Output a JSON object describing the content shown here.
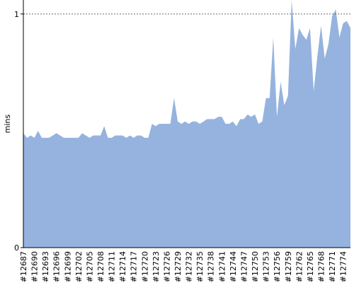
{
  "chart_data": {
    "type": "area",
    "y_label": "mins",
    "categories": [
      "#12687",
      null,
      null,
      "#12690",
      null,
      null,
      "#12693",
      null,
      null,
      "#12696",
      null,
      null,
      "#12699",
      null,
      null,
      "#12702",
      null,
      null,
      "#12705",
      null,
      null,
      "#12708",
      null,
      null,
      "#12711",
      null,
      null,
      "#12714",
      null,
      null,
      "#12717",
      null,
      null,
      "#12720",
      null,
      null,
      "#12723",
      null,
      null,
      "#12726",
      null,
      null,
      "#12729",
      null,
      null,
      "#12732",
      null,
      null,
      "#12735",
      null,
      null,
      "#12738",
      null,
      null,
      "#12741",
      null,
      null,
      "#12744",
      null,
      null,
      "#12747",
      null,
      null,
      "#12750",
      null,
      null,
      "#12753",
      null,
      null,
      "#12756",
      null,
      null,
      "#12759",
      null,
      null,
      "#12762",
      null,
      null,
      "#12765",
      null,
      null,
      "#12768",
      null,
      null,
      "#12771",
      null,
      null,
      "#12774",
      null,
      null
    ],
    "values": [
      0.49,
      0.47,
      0.48,
      0.47,
      0.5,
      0.47,
      0.47,
      0.47,
      0.48,
      0.49,
      0.48,
      0.47,
      0.47,
      0.47,
      0.47,
      0.47,
      0.49,
      0.48,
      0.47,
      0.48,
      0.48,
      0.48,
      0.52,
      0.47,
      0.47,
      0.48,
      0.48,
      0.48,
      0.47,
      0.48,
      0.47,
      0.48,
      0.48,
      0.47,
      0.47,
      0.53,
      0.52,
      0.53,
      0.53,
      0.53,
      0.53,
      0.64,
      0.54,
      0.53,
      0.54,
      0.53,
      0.54,
      0.54,
      0.53,
      0.54,
      0.55,
      0.55,
      0.55,
      0.56,
      0.56,
      0.53,
      0.53,
      0.54,
      0.52,
      0.55,
      0.55,
      0.57,
      0.56,
      0.57,
      0.53,
      0.54,
      0.64,
      0.64,
      0.9,
      0.56,
      0.71,
      0.61,
      0.65,
      1.06,
      0.85,
      0.94,
      0.91,
      0.89,
      0.94,
      0.67,
      0.82,
      0.95,
      0.81,
      0.87,
      0.99,
      1.02,
      0.9,
      0.96,
      0.97,
      0.94
    ],
    "color": "#95b3de",
    "ylim": [
      0,
      1.06
    ],
    "yticks": [
      0,
      1
    ],
    "grid": true
  }
}
